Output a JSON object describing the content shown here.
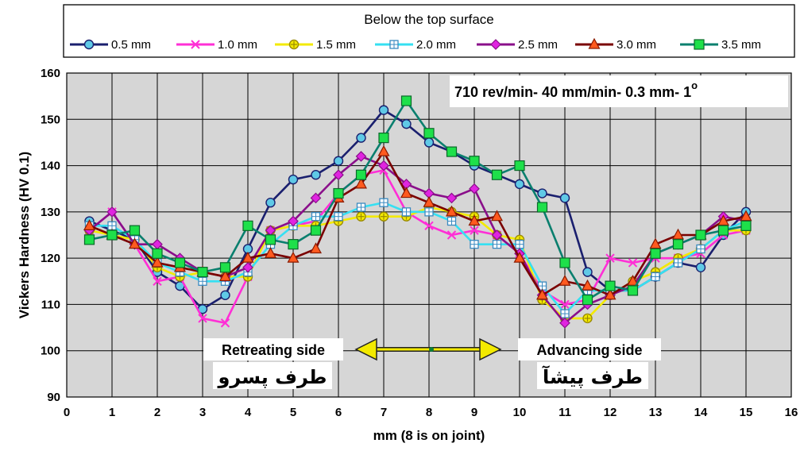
{
  "chart_data": {
    "type": "line",
    "legend_title": "Below the top surface",
    "xlabel": "mm (8 is on joint)",
    "ylabel": "Vickers Hardness (HV 0.1)",
    "xlim": [
      0,
      16
    ],
    "ylim": [
      90,
      160
    ],
    "x_ticks": [
      "0",
      "1",
      "2",
      "3",
      "4",
      "5",
      "6",
      "7",
      "8",
      "9",
      "10",
      "11",
      "12",
      "13",
      "14",
      "15",
      "16"
    ],
    "y_ticks": [
      "90",
      "100",
      "110",
      "120",
      "130",
      "140",
      "150",
      "160"
    ],
    "grid": true,
    "legend_position": "top",
    "plot_background": "#d6d6d6",
    "x": [
      0.5,
      1,
      1.5,
      2,
      2.5,
      3,
      3.5,
      4,
      4.5,
      5,
      5.5,
      6,
      6.5,
      7,
      7.5,
      8,
      8.5,
      9,
      9.5,
      10,
      10.5,
      11,
      11.5,
      12,
      12.5,
      13,
      13.5,
      14,
      14.5,
      15
    ],
    "series": [
      {
        "name": "0.5 mm",
        "color": "#1a1f6e",
        "marker": "circle",
        "marker_fill": "#5fc9e6",
        "values": [
          128,
          126,
          124,
          117,
          114,
          109,
          112,
          122,
          132,
          137,
          138,
          141,
          146,
          152,
          149,
          145,
          143,
          140,
          138,
          136,
          134,
          133,
          117,
          113,
          113,
          116,
          119,
          118,
          125,
          130
        ]
      },
      {
        "name": "1.0 mm",
        "color": "#ff2fd6",
        "marker": "x",
        "marker_fill": "none",
        "values": [
          126,
          130,
          123,
          115,
          116,
          107,
          106,
          116,
          126,
          127,
          128,
          134,
          138,
          139,
          130,
          127,
          125,
          126,
          125,
          121,
          113,
          110,
          111,
          120,
          119,
          120,
          120,
          121,
          125,
          126
        ]
      },
      {
        "name": "1.5 mm",
        "color": "#f3ea00",
        "marker": "circle-plus",
        "marker_fill": "#f3ea00",
        "values": [
          126,
          125,
          124,
          118,
          116,
          117,
          116,
          116,
          126,
          127,
          127,
          128,
          129,
          129,
          129,
          131,
          130,
          129,
          125,
          124,
          111,
          107,
          107,
          112,
          115,
          117,
          120,
          122,
          126,
          126
        ]
      },
      {
        "name": "2.0 mm",
        "color": "#35e0f2",
        "marker": "square-plus",
        "marker_fill": "#ffffff",
        "values": [
          127,
          127,
          124,
          119,
          117,
          115,
          115,
          117,
          123,
          127,
          129,
          129,
          131,
          132,
          130,
          130,
          128,
          123,
          123,
          123,
          114,
          108,
          113,
          113,
          113,
          116,
          119,
          122,
          126,
          128
        ]
      },
      {
        "name": "2.5 mm",
        "color": "#8a0f8a",
        "marker": "diamond",
        "marker_fill": "#e024e0",
        "values": [
          126,
          130,
          123,
          123,
          120,
          117,
          116,
          118,
          126,
          128,
          133,
          138,
          142,
          140,
          136,
          134,
          133,
          135,
          125,
          121,
          112,
          106,
          110,
          112,
          114,
          121,
          123,
          125,
          129,
          128
        ]
      },
      {
        "name": "3.0 mm",
        "color": "#7a0000",
        "marker": "triangle",
        "marker_fill": "#ff5a1f",
        "values": [
          127,
          125,
          123,
          119,
          118,
          117,
          116,
          120,
          121,
          120,
          122,
          133,
          136,
          143,
          134,
          132,
          130,
          128,
          129,
          120,
          112,
          115,
          114,
          112,
          115,
          123,
          125,
          125,
          128,
          129
        ]
      },
      {
        "name": "3.5 mm",
        "color": "#0a7f6e",
        "marker": "square",
        "marker_fill": "#1ee04a",
        "values": [
          124,
          125,
          126,
          121,
          119,
          117,
          118,
          127,
          124,
          123,
          126,
          134,
          138,
          146,
          154,
          147,
          143,
          141,
          138,
          140,
          131,
          119,
          111,
          114,
          113,
          121,
          123,
          125,
          126,
          127
        ]
      }
    ],
    "annotations": {
      "process_params": "710 rev/min- 40 mm/min- 0.3 mm- 1",
      "process_params_sup": "o",
      "retreating": "Retreating side",
      "retreating_fa": "طرف پسرو",
      "advancing": "Advancing side",
      "advancing_fa": "طرف پیشآ"
    }
  }
}
